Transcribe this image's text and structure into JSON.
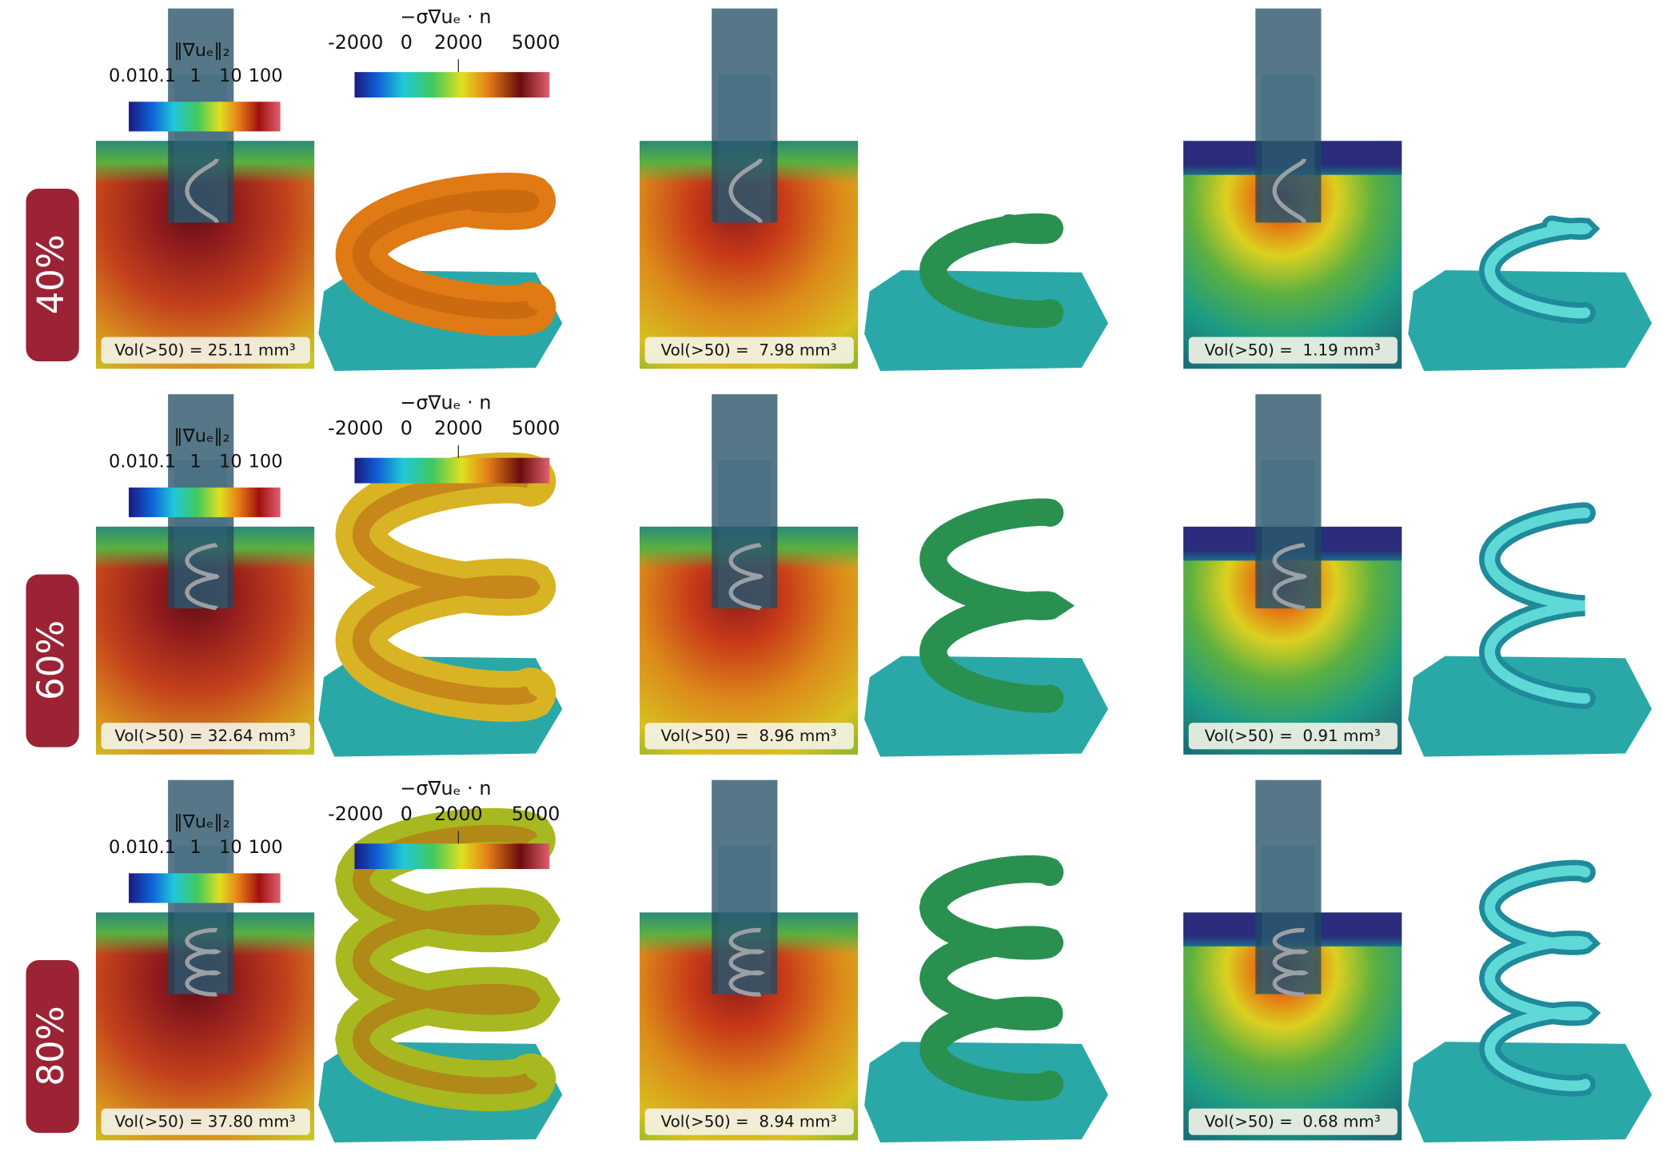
{
  "rows": [
    {
      "label": "40%",
      "grad_colorbar": {
        "title": "‖∇uₑ‖₂",
        "ticks": [
          "0.01",
          "0.1",
          "1",
          "10",
          "100"
        ]
      },
      "flux_colorbar": {
        "title": "−σ∇uₑ · n",
        "ticks": [
          "-2000",
          "0",
          "2000",
          "5000"
        ]
      },
      "volumes": [
        "Vol(>50) = 25.11 mm³",
        "Vol(>50) =  7.98 mm³",
        "Vol(>50) =  1.19 mm³"
      ]
    },
    {
      "label": "60%",
      "grad_colorbar": {
        "title": "‖∇uₑ‖₂",
        "ticks": [
          "0.01",
          "0.1",
          "1",
          "10",
          "100"
        ]
      },
      "flux_colorbar": {
        "title": "−σ∇uₑ · n",
        "ticks": [
          "-2000",
          "0",
          "2000",
          "5000"
        ]
      },
      "volumes": [
        "Vol(>50) = 32.64 mm³",
        "Vol(>50) =  8.96 mm³",
        "Vol(>50) =  0.91 mm³"
      ]
    },
    {
      "label": "80%",
      "grad_colorbar": {
        "title": "‖∇uₑ‖₂",
        "ticks": [
          "0.01",
          "0.1",
          "1",
          "10",
          "100"
        ]
      },
      "flux_colorbar": {
        "title": "−σ∇uₑ · n",
        "ticks": [
          "-2000",
          "0",
          "2000",
          "5000"
        ]
      },
      "volumes": [
        "Vol(>50) = 37.80 mm³",
        "Vol(>50) =  8.94 mm³",
        "Vol(>50) =  0.68 mm³"
      ]
    }
  ]
}
